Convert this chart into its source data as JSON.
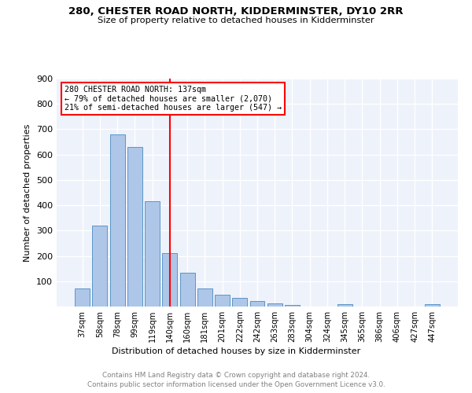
{
  "title": "280, CHESTER ROAD NORTH, KIDDERMINSTER, DY10 2RR",
  "subtitle": "Size of property relative to detached houses in Kidderminster",
  "xlabel": "Distribution of detached houses by size in Kidderminster",
  "ylabel": "Number of detached properties",
  "categories": [
    "37sqm",
    "58sqm",
    "78sqm",
    "99sqm",
    "119sqm",
    "140sqm",
    "160sqm",
    "181sqm",
    "201sqm",
    "222sqm",
    "242sqm",
    "263sqm",
    "283sqm",
    "304sqm",
    "324sqm",
    "345sqm",
    "365sqm",
    "386sqm",
    "406sqm",
    "427sqm",
    "447sqm"
  ],
  "values": [
    70,
    320,
    680,
    630,
    415,
    210,
    135,
    70,
    48,
    33,
    22,
    12,
    6,
    0,
    0,
    8,
    0,
    0,
    0,
    0,
    8
  ],
  "bar_color": "#aec6e8",
  "bar_edge_color": "#5a96c8",
  "property_bin_index": 5,
  "annotation_text": "280 CHESTER ROAD NORTH: 137sqm\n← 79% of detached houses are smaller (2,070)\n21% of semi-detached houses are larger (547) →",
  "annotation_box_color": "white",
  "annotation_border_color": "red",
  "vline_color": "red",
  "background_color": "#eef2fb",
  "grid_color": "white",
  "footer_line1": "Contains HM Land Registry data © Crown copyright and database right 2024.",
  "footer_line2": "Contains public sector information licensed under the Open Government Licence v3.0.",
  "ylim": [
    0,
    900
  ],
  "yticks": [
    0,
    100,
    200,
    300,
    400,
    500,
    600,
    700,
    800,
    900
  ]
}
